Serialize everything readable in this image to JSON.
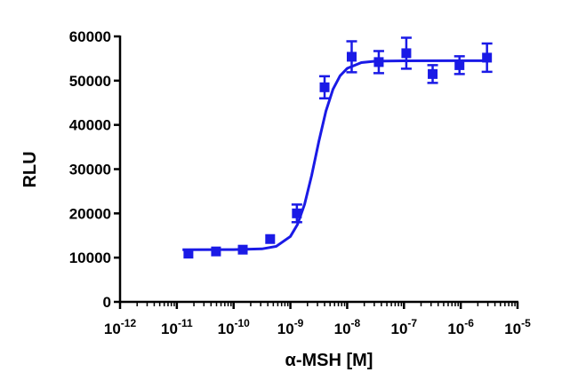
{
  "chart_data": {
    "type": "scatter",
    "x_label": "α-MSH [M]",
    "y_label": "RLU",
    "xscale": "log",
    "xlim": [
      1e-12,
      1e-05
    ],
    "ylim": [
      0,
      60000
    ],
    "xticks": [
      {
        "value": 1e-12,
        "label": "10-12"
      },
      {
        "value": 1e-11,
        "label": "10-11"
      },
      {
        "value": 1e-10,
        "label": "10-10"
      },
      {
        "value": 1e-09,
        "label": "10-9"
      },
      {
        "value": 1e-08,
        "label": "10-8"
      },
      {
        "value": 1e-07,
        "label": "10-7"
      },
      {
        "value": 1e-06,
        "label": "10-6"
      },
      {
        "value": 1e-05,
        "label": "10-5"
      }
    ],
    "yticks": [
      0,
      10000,
      20000,
      30000,
      40000,
      50000,
      60000
    ],
    "series": [
      {
        "type": "scatter",
        "color": "#1a1ae6",
        "x": [
          1.6e-11,
          4.9e-11,
          1.45e-10,
          4.4e-10,
          1.3e-09,
          4e-09,
          1.2e-08,
          3.6e-08,
          1.1e-07,
          3.2e-07,
          9.5e-07,
          2.9e-06
        ],
        "values": [
          10900,
          11400,
          11800,
          14200,
          20000,
          48500,
          55400,
          54200,
          56200,
          51500,
          53500,
          55200
        ],
        "errors": [
          0,
          0,
          0,
          0,
          2000,
          2500,
          3500,
          2500,
          3500,
          2000,
          2000,
          3200
        ]
      },
      {
        "type": "line",
        "color": "#1a1ae6",
        "x": [
          1.259e-11,
          1e-10,
          3.162e-10,
          5.623e-10,
          1e-09,
          1.334e-09,
          1.778e-09,
          2.371e-09,
          3.162e-09,
          4.217e-09,
          5.623e-09,
          7.499e-09,
          1e-08,
          1.778e-08,
          3.162e-08,
          1e-07,
          1e-06,
          3.162e-06
        ],
        "values": [
          11800,
          11810,
          11980,
          12550,
          14790,
          17500,
          22060,
          28610,
          36200,
          43080,
          48050,
          51100,
          52770,
          54080,
          54400,
          54490,
          54500,
          54500
        ]
      }
    ]
  }
}
